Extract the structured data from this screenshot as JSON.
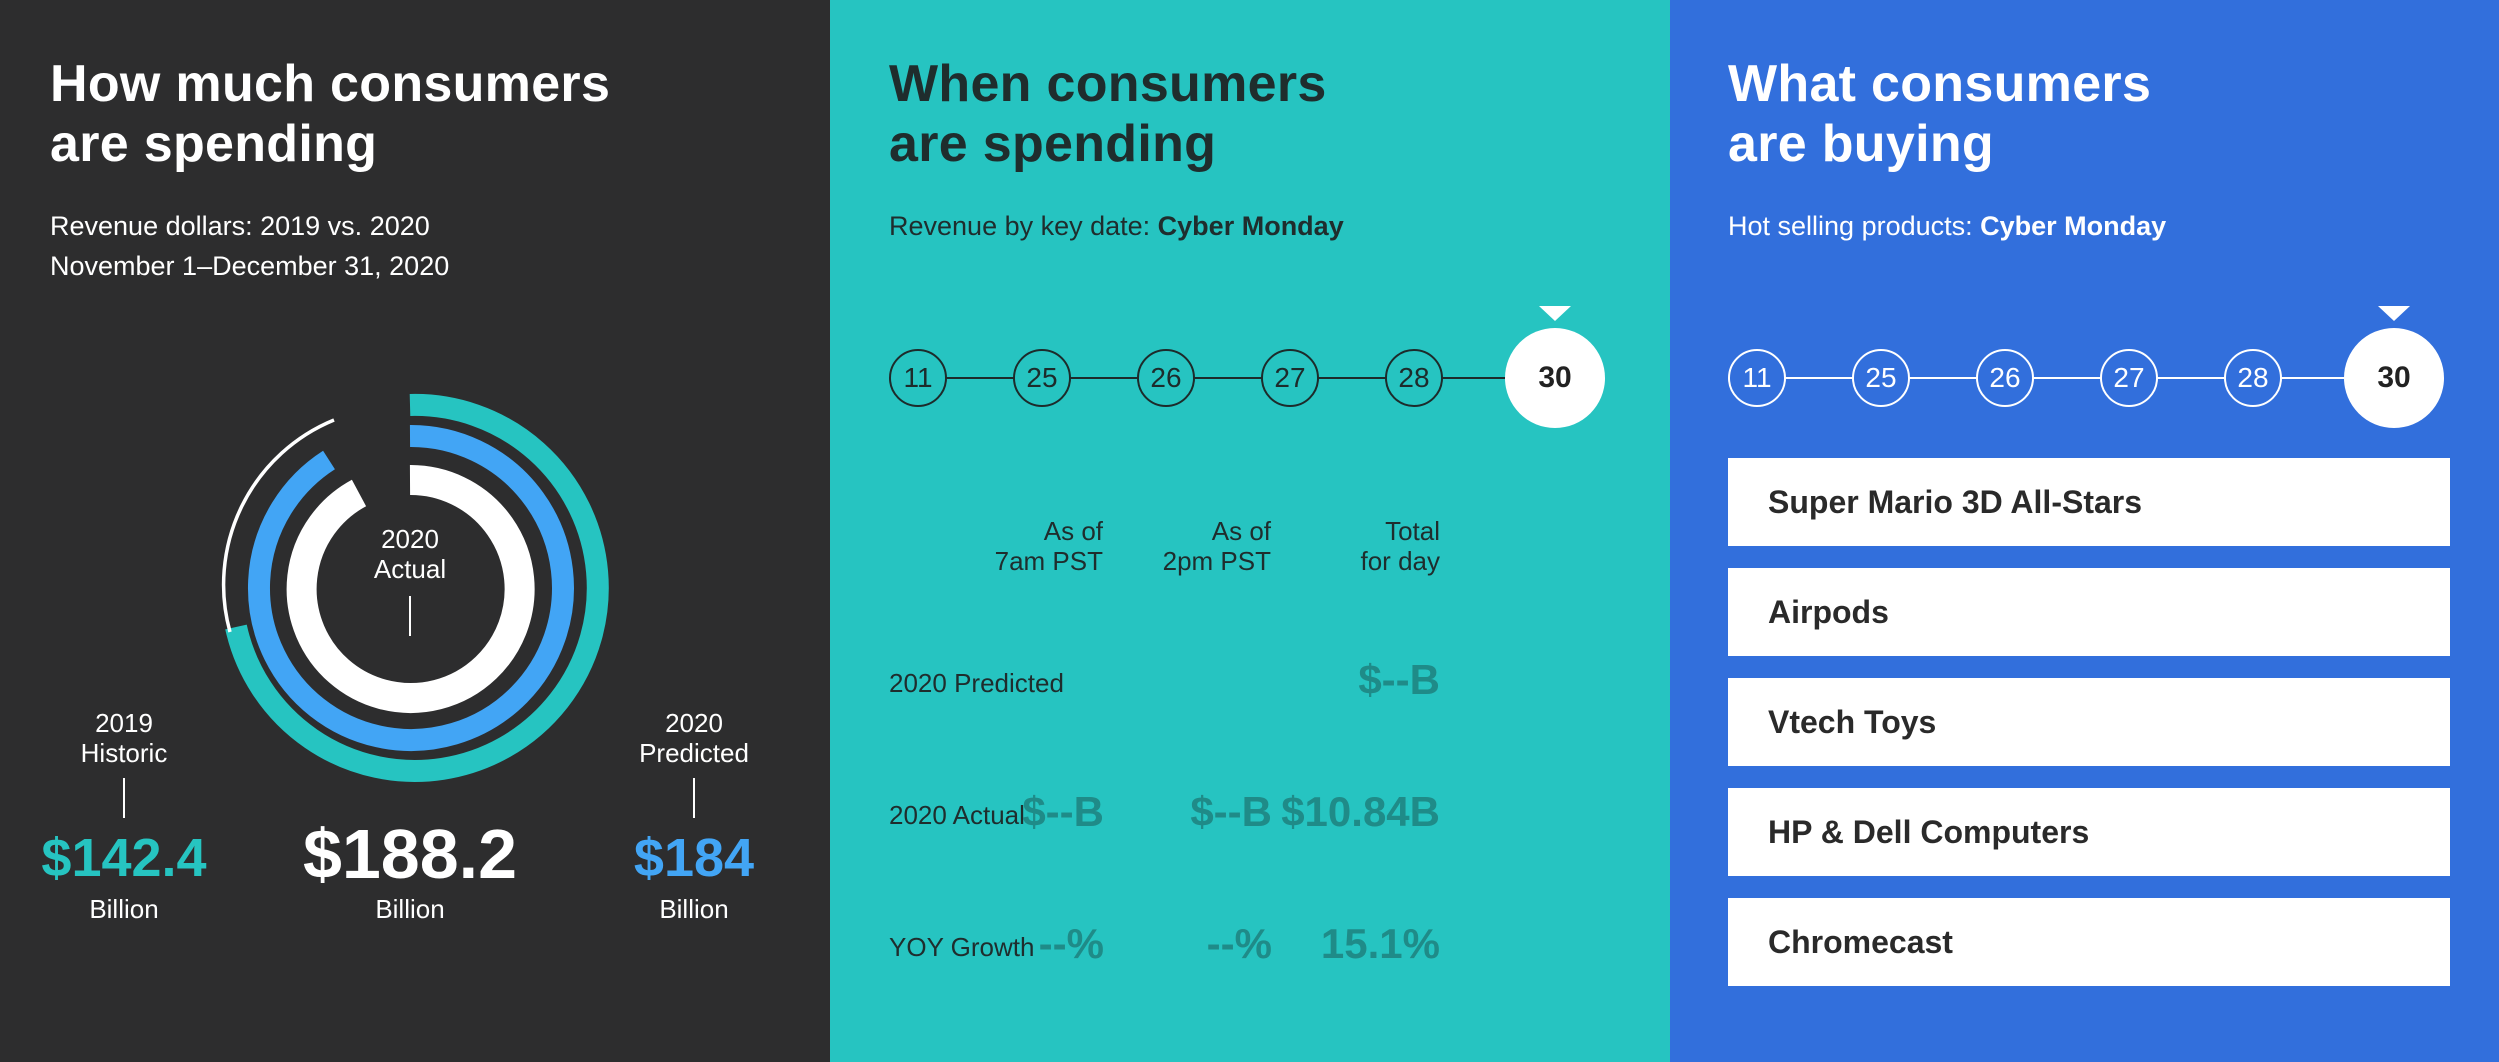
{
  "panel1": {
    "title_line1": "How much consumers",
    "title_line2": "are spending",
    "subtitle_line1": "Revenue dollars: 2019 vs. 2020",
    "subtitle_line2": "November 1–December 31, 2020",
    "center_label_line1": "2020",
    "center_label_line2": "Actual",
    "historic": {
      "label_line1": "2019",
      "label_line2": "Historic",
      "value": "$142.4",
      "unit": "Billion"
    },
    "actual": {
      "value": "$188.2",
      "unit": "Billion"
    },
    "predicted": {
      "label_line1": "2020",
      "label_line2": "Predicted",
      "value": "$184",
      "unit": "Billion"
    },
    "colors": {
      "historic": "#26c4c1",
      "predicted": "#42a5f5",
      "actual": "#ffffff",
      "background": "#2d2d2e"
    }
  },
  "panel2": {
    "title_line1": "When consumers",
    "title_line2": "are spending",
    "subtitle_prefix": "Revenue by key date: ",
    "subtitle_bold": "Cyber Monday",
    "timeline": {
      "dates": [
        "11",
        "25",
        "26",
        "27",
        "28"
      ],
      "active": "30"
    },
    "columns": [
      {
        "line1": "As of",
        "line2": "7am PST"
      },
      {
        "line1": "As of",
        "line2": "2pm PST"
      },
      {
        "line1": "Total",
        "line2": "for day"
      }
    ],
    "rows": [
      {
        "label": "2020 Predicted",
        "values": [
          "",
          "",
          "$--B"
        ]
      },
      {
        "label": "2020 Actual",
        "values": [
          "$--B",
          "$--B",
          "$10.84B"
        ]
      },
      {
        "label": "YOY Growth",
        "values": [
          "--%",
          "--%",
          "15.1%"
        ]
      }
    ],
    "colors": {
      "background": "#26c4c1",
      "value": "#1f8b88"
    }
  },
  "panel3": {
    "title_line1": "What consumers",
    "title_line2": "are buying",
    "subtitle_prefix": "Hot selling products: ",
    "subtitle_bold": "Cyber Monday",
    "timeline": {
      "dates": [
        "11",
        "25",
        "26",
        "27",
        "28"
      ],
      "active": "30"
    },
    "products": [
      "Super Mario 3D All-Stars",
      "Airpods",
      "Vtech Toys",
      "HP & Dell Computers",
      "Chromecast"
    ],
    "colors": {
      "background": "#326fdc"
    }
  }
}
